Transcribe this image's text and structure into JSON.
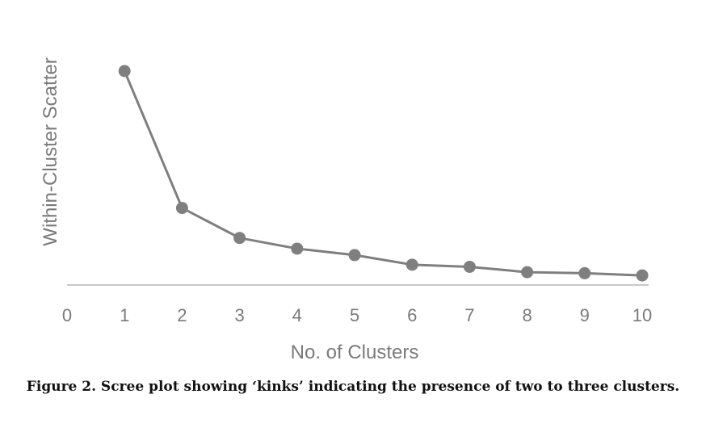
{
  "caption": "Figure 2. Scree plot showing ‘kinks’ indicating the presence of two to three clusters.",
  "colors": {
    "series": "#7f7f7f",
    "axis": "#c8c8c8",
    "text": "#7a7a7a"
  },
  "chart_data": {
    "type": "line",
    "title": "",
    "xlabel": "No. of Clusters",
    "ylabel": "Within-Cluster Scatter",
    "xlim": [
      0,
      10
    ],
    "ylim": [
      0,
      100
    ],
    "x_ticks": [
      "0",
      "1",
      "2",
      "3",
      "4",
      "5",
      "6",
      "7",
      "8",
      "9",
      "10"
    ],
    "show_y_ticks": false,
    "grid": false,
    "legend": "none",
    "x": [
      1,
      2,
      3,
      4,
      5,
      6,
      7,
      8,
      9,
      10
    ],
    "values": [
      100,
      36,
      22,
      17,
      14,
      9.5,
      8.5,
      6,
      5.5,
      4.5
    ]
  }
}
